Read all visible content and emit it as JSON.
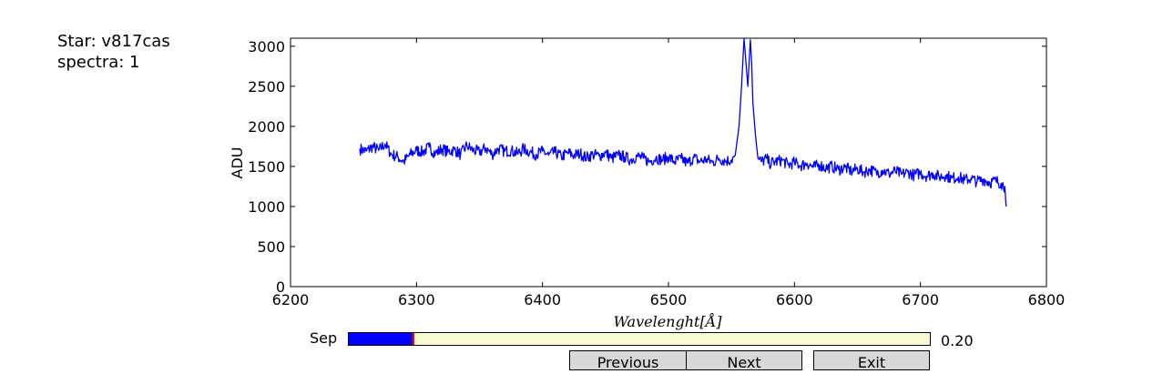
{
  "info": {
    "star_label": "Star: v817cas",
    "spectra_label": "spectra: 1"
  },
  "chart_data": {
    "type": "line",
    "xlabel": "Wavelenght[Å]",
    "ylabel": "ADU",
    "xlim": [
      6200,
      6800
    ],
    "ylim": [
      0,
      3100
    ],
    "xticks": [
      6200,
      6300,
      6400,
      6500,
      6600,
      6700,
      6800
    ],
    "yticks": [
      0,
      500,
      1000,
      1500,
      2000,
      2500,
      3000
    ],
    "grid": false,
    "series": [
      {
        "color": "#0000ff",
        "x": [
          6255,
          6260,
          6265,
          6270,
          6275,
          6280,
          6285,
          6290,
          6295,
          6300,
          6305,
          6310,
          6315,
          6320,
          6325,
          6330,
          6335,
          6340,
          6345,
          6350,
          6355,
          6360,
          6365,
          6370,
          6375,
          6380,
          6385,
          6390,
          6395,
          6400,
          6405,
          6410,
          6415,
          6420,
          6425,
          6430,
          6435,
          6440,
          6445,
          6450,
          6455,
          6460,
          6465,
          6470,
          6475,
          6480,
          6485,
          6490,
          6495,
          6500,
          6505,
          6510,
          6515,
          6520,
          6525,
          6530,
          6535,
          6540,
          6545,
          6550,
          6553,
          6556,
          6558,
          6560,
          6561,
          6562,
          6563,
          6564,
          6565,
          6566,
          6567,
          6569,
          6571,
          6574,
          6578,
          6580,
          6585,
          6590,
          6595,
          6600,
          6605,
          6610,
          6615,
          6620,
          6625,
          6630,
          6635,
          6640,
          6645,
          6650,
          6655,
          6660,
          6665,
          6670,
          6675,
          6680,
          6685,
          6690,
          6695,
          6700,
          6705,
          6710,
          6715,
          6720,
          6725,
          6730,
          6735,
          6740,
          6745,
          6750,
          6755,
          6760,
          6764,
          6767,
          6768
        ],
        "y": [
          1720,
          1690,
          1750,
          1700,
          1780,
          1650,
          1620,
          1560,
          1650,
          1700,
          1680,
          1740,
          1660,
          1720,
          1680,
          1710,
          1650,
          1760,
          1700,
          1680,
          1730,
          1650,
          1720,
          1690,
          1700,
          1660,
          1720,
          1680,
          1650,
          1690,
          1640,
          1680,
          1620,
          1670,
          1640,
          1660,
          1610,
          1650,
          1630,
          1670,
          1600,
          1640,
          1620,
          1580,
          1630,
          1600,
          1560,
          1610,
          1580,
          1620,
          1560,
          1600,
          1540,
          1610,
          1560,
          1590,
          1550,
          1600,
          1570,
          1580,
          1640,
          2000,
          2500,
          3100,
          2900,
          2700,
          2500,
          2800,
          3080,
          2800,
          2300,
          1900,
          1600,
          1560,
          1600,
          1540,
          1560,
          1580,
          1520,
          1550,
          1510,
          1540,
          1490,
          1520,
          1480,
          1500,
          1460,
          1490,
          1440,
          1470,
          1430,
          1460,
          1420,
          1450,
          1410,
          1440,
          1400,
          1430,
          1390,
          1420,
          1380,
          1410,
          1370,
          1390,
          1350,
          1370,
          1330,
          1350,
          1310,
          1340,
          1300,
          1320,
          1290,
          1250,
          1000
        ]
      }
    ]
  },
  "controls": {
    "slider_label": "Sep",
    "slider_value_text": "0.20",
    "slider_fraction": 0.112,
    "buttons": {
      "previous": "Previous",
      "next": "Next",
      "exit": "Exit"
    }
  }
}
